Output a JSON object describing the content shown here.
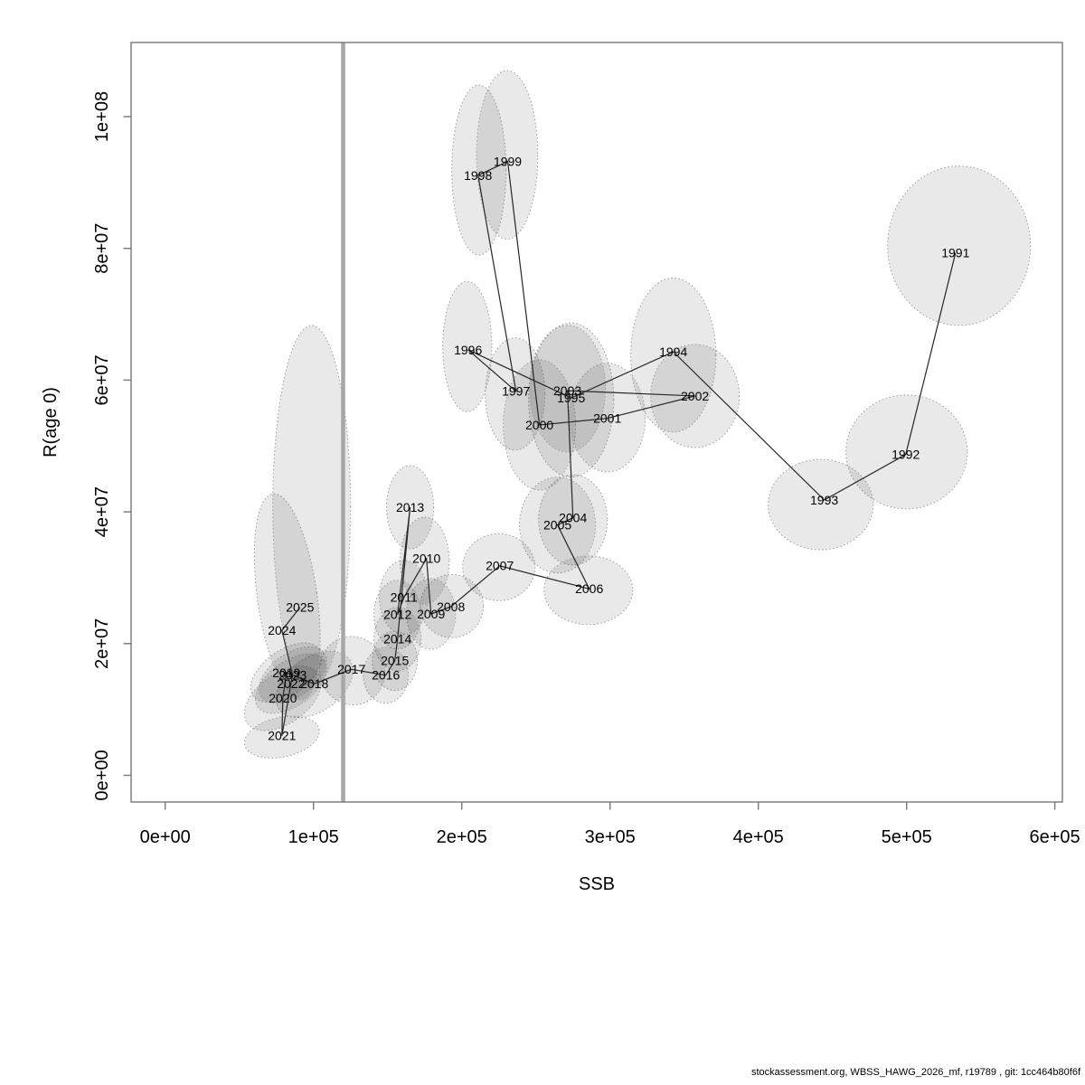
{
  "figure": {
    "footer": "stockassessment.org, WBSS_HAWG_2026_mf, r19789 , git: 1cc464b80f6f"
  },
  "colors": {
    "year_label": "#ff0000",
    "connector_line": "#262626",
    "ellipse_fill": "rgba(0,0,0,0.085)",
    "ellipse_stroke": "#9c9c9c",
    "ref_line": "#a6a6a6",
    "axis_frame": "#777777",
    "tick_text": "#000000"
  },
  "chart_data": {
    "type": "scatter",
    "title": "",
    "xlabel": "SSB",
    "ylabel": "R(age 0)",
    "legend": null,
    "grid": false,
    "xlim": [
      -23000,
      605100
    ],
    "ylim": [
      -4050000,
      111260000
    ],
    "x_ticks": [
      {
        "value": 0,
        "label": "0e+00"
      },
      {
        "value": 100000,
        "label": "1e+05"
      },
      {
        "value": 200000,
        "label": "2e+05"
      },
      {
        "value": 300000,
        "label": "3e+05"
      },
      {
        "value": 400000,
        "label": "4e+05"
      },
      {
        "value": 500000,
        "label": "5e+05"
      },
      {
        "value": 600000,
        "label": "6e+05"
      }
    ],
    "y_ticks": [
      {
        "value": 0,
        "label": "0e+00"
      },
      {
        "value": 20000000,
        "label": "2e+07"
      },
      {
        "value": 40000000,
        "label": "4e+07"
      },
      {
        "value": 60000000,
        "label": "6e+07"
      },
      {
        "value": 80000000,
        "label": "8e+07"
      },
      {
        "value": 100000000,
        "label": "1e+08"
      }
    ],
    "ref_line_x": 120000,
    "connect_years_in_order": true,
    "points": [
      {
        "year": "1991",
        "ssb": 533000,
        "rec": 79300000,
        "ell": {
          "cx": 535400,
          "cy": 80400000,
          "rx": 48200,
          "ry": 12100000,
          "tilt": 0
        }
      },
      {
        "year": "1992",
        "ssb": 499400,
        "rec": 48700000,
        "ell": {
          "cx": 500000,
          "cy": 49100000,
          "rx": 40900,
          "ry": 8650000,
          "tilt": 0
        }
      },
      {
        "year": "1993",
        "ssb": 444500,
        "rec": 41800000,
        "ell": {
          "cx": 442100,
          "cy": 41100000,
          "rx": 35400,
          "ry": 6870000,
          "tilt": 0
        }
      },
      {
        "year": "1994",
        "ssb": 342700,
        "rec": 64300000,
        "ell": {
          "cx": 342700,
          "cy": 63800000,
          "rx": 28700,
          "ry": 11700000,
          "tilt": 0
        }
      },
      {
        "year": "1995",
        "ssb": 273800,
        "rec": 57300000,
        "ell": {
          "cx": 273800,
          "cy": 57000000,
          "rx": 28700,
          "ry": 11700000,
          "tilt": 0
        }
      },
      {
        "year": "1996",
        "ssb": 204300,
        "rec": 64600000,
        "ell": {
          "cx": 203700,
          "cy": 65100000,
          "rx": 16500,
          "ry": 9890000,
          "tilt": 0
        }
      },
      {
        "year": "1997",
        "ssb": 236600,
        "rec": 58300000,
        "ell": {
          "cx": 236000,
          "cy": 57900000,
          "rx": 20100,
          "ry": 8520000,
          "tilt": 0
        }
      },
      {
        "year": "1998",
        "ssb": 211000,
        "rec": 91100000,
        "ell": {
          "cx": 211600,
          "cy": 91900000,
          "rx": 18300,
          "ry": 12900000,
          "tilt": 0
        }
      },
      {
        "year": "1999",
        "ssb": 231000,
        "rec": 93200000,
        "ell": {
          "cx": 230600,
          "cy": 94200000,
          "rx": 20700,
          "ry": 12800000,
          "tilt": 0
        }
      },
      {
        "year": "2000",
        "ssb": 252400,
        "rec": 53200000,
        "ell": {
          "cx": 252400,
          "cy": 53200000,
          "rx": 24400,
          "ry": 9890000,
          "tilt": 0
        }
      },
      {
        "year": "2001",
        "ssb": 298200,
        "rec": 54200000,
        "ell": {
          "cx": 298200,
          "cy": 54300000,
          "rx": 25600,
          "ry": 8240000,
          "tilt": 0
        }
      },
      {
        "year": "2002",
        "ssb": 357300,
        "rec": 57600000,
        "ell": {
          "cx": 357300,
          "cy": 57600000,
          "rx": 29900,
          "ry": 7830000,
          "tilt": 0
        }
      },
      {
        "year": "2003",
        "ssb": 271300,
        "rec": 58400000,
        "ell": {
          "cx": 271300,
          "cy": 58700000,
          "rx": 25600,
          "ry": 9620000,
          "tilt": 0
        }
      },
      {
        "year": "2004",
        "ssb": 275000,
        "rec": 39100000,
        "ell": {
          "cx": 275000,
          "cy": 38800000,
          "rx": 23200,
          "ry": 6870000,
          "tilt": 0
        }
      },
      {
        "year": "2005",
        "ssb": 264600,
        "rec": 38000000,
        "ell": {
          "cx": 264600,
          "cy": 38000000,
          "rx": 25600,
          "ry": 7280000,
          "tilt": 0
        }
      },
      {
        "year": "2006",
        "ssb": 286000,
        "rec": 28300000,
        "ell": {
          "cx": 285400,
          "cy": 28100000,
          "rx": 29900,
          "ry": 5220000,
          "tilt": 0
        }
      },
      {
        "year": "2007",
        "ssb": 225600,
        "rec": 31800000,
        "ell": {
          "cx": 225000,
          "cy": 31600000,
          "rx": 24400,
          "ry": 5080000,
          "tilt": 0
        }
      },
      {
        "year": "2008",
        "ssb": 192700,
        "rec": 25600000,
        "ell": {
          "cx": 193300,
          "cy": 25700000,
          "rx": 21300,
          "ry": 4810000,
          "tilt": 0
        }
      },
      {
        "year": "2009",
        "ssb": 179300,
        "rec": 24500000,
        "ell": {
          "cx": 179300,
          "cy": 24500000,
          "rx": 16500,
          "ry": 5360000,
          "tilt": 0
        }
      },
      {
        "year": "2010",
        "ssb": 176200,
        "rec": 32900000,
        "ell": {
          "cx": 175000,
          "cy": 32600000,
          "rx": 16500,
          "ry": 6590000,
          "tilt": 0
        }
      },
      {
        "year": "2011",
        "ssb": 161000,
        "rec": 27000000,
        "ell": {
          "cx": 161000,
          "cy": 27000000,
          "rx": 16500,
          "ry": 5630000,
          "tilt": 0
        }
      },
      {
        "year": "2012",
        "ssb": 156700,
        "rec": 24400000,
        "ell": {
          "cx": 156700,
          "cy": 24400000,
          "rx": 15900,
          "ry": 5220000,
          "tilt": 0
        }
      },
      {
        "year": "2013",
        "ssb": 165200,
        "rec": 40700000,
        "ell": {
          "cx": 165200,
          "cy": 40700000,
          "rx": 15900,
          "ry": 6320000,
          "tilt": 0
        }
      },
      {
        "year": "2014",
        "ssb": 156700,
        "rec": 20700000,
        "ell": {
          "cx": 156700,
          "cy": 20700000,
          "rx": 15900,
          "ry": 4810000,
          "tilt": 0
        }
      },
      {
        "year": "2015",
        "ssb": 154900,
        "rec": 17400000,
        "ell": {
          "cx": 154900,
          "cy": 17400000,
          "rx": 15200,
          "ry": 4530000,
          "tilt": 0
        }
      },
      {
        "year": "2016",
        "ssb": 148800,
        "rec": 15200000,
        "ell": {
          "cx": 148800,
          "cy": 15200000,
          "rx": 15200,
          "ry": 4260000,
          "tilt": 0
        }
      },
      {
        "year": "2017",
        "ssb": 125600,
        "rec": 16100000,
        "ell": {
          "cx": 126200,
          "cy": 15900000,
          "rx": 22000,
          "ry": 5220000,
          "tilt": -20
        }
      },
      {
        "year": "2018",
        "ssb": 100600,
        "rec": 13900000,
        "ell": {
          "cx": 100600,
          "cy": 13800000,
          "rx": 29000,
          "ry": 4100000,
          "tilt": -35
        }
      },
      {
        "year": "2019",
        "ssb": 81700,
        "rec": 15600000,
        "ell": {
          "cx": 81700,
          "cy": 15600000,
          "rx": 27400,
          "ry": 3400000,
          "tilt": -35
        }
      },
      {
        "year": "2020",
        "ssb": 79300,
        "rec": 11700000,
        "ell": {
          "cx": 79300,
          "cy": 11700000,
          "rx": 29300,
          "ry": 3800000,
          "tilt": -35
        }
      },
      {
        "year": "2021",
        "ssb": 78700,
        "rec": 6000000,
        "ell": {
          "cx": 78700,
          "cy": 5800000,
          "rx": 25600,
          "ry": 3000000,
          "tilt": -12
        }
      },
      {
        "year": "2022",
        "ssb": 84800,
        "rec": 13900000,
        "ell": {
          "cx": 84800,
          "cy": 13900000,
          "rx": 27400,
          "ry": 3400000,
          "tilt": -35
        }
      },
      {
        "year": "2023",
        "ssb": 86000,
        "rec": 15200000,
        "ell": {
          "cx": 86000,
          "cy": 15200000,
          "rx": 26000,
          "ry": 3300000,
          "tilt": -35
        }
      },
      {
        "year": "2024",
        "ssb": 78700,
        "rec": 22000000,
        "ell": {
          "cx": 82300,
          "cy": 27100000,
          "rx": 20100,
          "ry": 15800000,
          "tilt": -8
        }
      },
      {
        "year": "2025",
        "ssb": 90900,
        "rec": 25500000,
        "ell": {
          "cx": 98800,
          "cy": 40800000,
          "rx": 26200,
          "ry": 27500000,
          "tilt": 0
        }
      }
    ]
  }
}
